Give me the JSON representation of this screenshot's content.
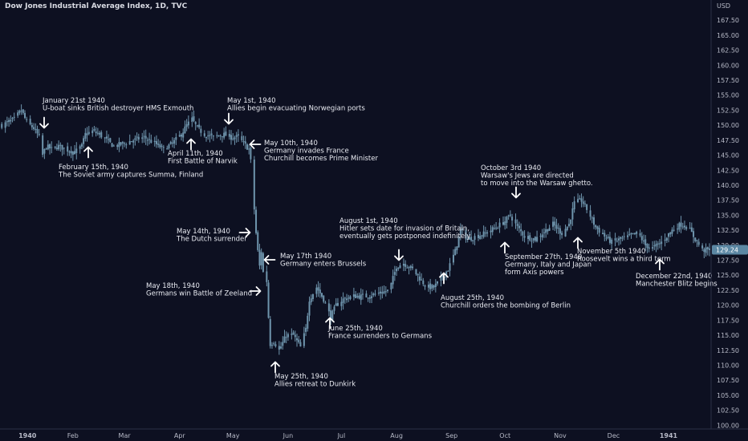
{
  "header": {
    "title": "Dow Jones Industrial Average Index, 1D, TVC",
    "currency": "USD"
  },
  "colors": {
    "background": "#0d1021",
    "candle": "#6f95ad",
    "annotation": "#ffffff",
    "price_tag": "#5b87a3"
  },
  "chart_data": {
    "type": "candlestick",
    "title": "Dow Jones Industrial Average Index, 1D, TVC",
    "ylabel": "USD",
    "ylim": [
      98.5,
      170
    ],
    "y_ticks": [
      100,
      102.5,
      105,
      107.5,
      110,
      112.5,
      115,
      117.5,
      120,
      122.5,
      125,
      127.5,
      130,
      132.5,
      135,
      137.5,
      140,
      142.5,
      145,
      147.5,
      150,
      152.5,
      155,
      157.5,
      160,
      162.5,
      165,
      167.5
    ],
    "x_ticks": [
      {
        "label": "1940",
        "date": "1940-01-01",
        "bold": true
      },
      {
        "label": "Feb",
        "date": "1940-02-01"
      },
      {
        "label": "Mar",
        "date": "1940-03-01"
      },
      {
        "label": "Apr",
        "date": "1940-04-01"
      },
      {
        "label": "May",
        "date": "1940-05-01"
      },
      {
        "label": "Jun",
        "date": "1940-06-01"
      },
      {
        "label": "Jul",
        "date": "1940-07-01"
      },
      {
        "label": "Aug",
        "date": "1940-08-01"
      },
      {
        "label": "Sep",
        "date": "1940-09-01"
      },
      {
        "label": "Oct",
        "date": "1940-10-01"
      },
      {
        "label": "Nov",
        "date": "1940-11-01"
      },
      {
        "label": "Dec",
        "date": "1940-12-01"
      },
      {
        "label": "1941",
        "date": "1941-01-01",
        "bold": true
      }
    ],
    "last_price": "129.24",
    "path": [
      [
        "1939-12-23",
        150.0
      ],
      [
        "1939-12-30",
        151.0
      ],
      [
        "1940-01-03",
        152.5
      ],
      [
        "1940-01-06",
        150.5
      ],
      [
        "1940-01-10",
        149.5
      ],
      [
        "1940-01-13",
        148.0
      ],
      [
        "1940-01-15",
        145.0
      ],
      [
        "1940-01-17",
        146.5
      ],
      [
        "1940-01-20",
        146.0
      ],
      [
        "1940-01-24",
        146.5
      ],
      [
        "1940-01-28",
        146.0
      ],
      [
        "1940-02-02",
        145.5
      ],
      [
        "1940-02-06",
        146.5
      ],
      [
        "1940-02-08",
        148.5
      ],
      [
        "1940-02-12",
        149.0
      ],
      [
        "1940-02-16",
        148.5
      ],
      [
        "1940-02-20",
        147.5
      ],
      [
        "1940-02-24",
        146.5
      ],
      [
        "1940-03-01",
        147.0
      ],
      [
        "1940-03-06",
        147.5
      ],
      [
        "1940-03-12",
        148.0
      ],
      [
        "1940-03-18",
        147.0
      ],
      [
        "1940-03-23",
        146.0
      ],
      [
        "1940-03-28",
        147.0
      ],
      [
        "1940-04-02",
        148.5
      ],
      [
        "1940-04-05",
        150.0
      ],
      [
        "1940-04-08",
        151.0
      ],
      [
        "1940-04-11",
        149.5
      ],
      [
        "1940-04-15",
        148.5
      ],
      [
        "1940-04-20",
        148.0
      ],
      [
        "1940-04-25",
        148.5
      ],
      [
        "1940-04-30",
        148.0
      ],
      [
        "1940-05-04",
        148.0
      ],
      [
        "1940-05-07",
        147.0
      ],
      [
        "1940-05-10",
        146.0
      ],
      [
        "1940-05-11",
        144.0
      ],
      [
        "1940-05-13",
        136.0
      ],
      [
        "1940-05-14",
        132.0
      ],
      [
        "1940-05-15",
        129.0
      ],
      [
        "1940-05-16",
        126.5
      ],
      [
        "1940-05-17",
        129.0
      ],
      [
        "1940-05-18",
        125.5
      ],
      [
        "1940-05-20",
        124.0
      ],
      [
        "1940-05-21",
        118.0
      ],
      [
        "1940-05-22",
        113.5
      ],
      [
        "1940-05-24",
        114.0
      ],
      [
        "1940-05-27",
        112.5
      ],
      [
        "1940-05-31",
        115.0
      ],
      [
        "1940-06-04",
        115.0
      ],
      [
        "1940-06-08",
        113.0
      ],
      [
        "1940-06-11",
        116.0
      ],
      [
        "1940-06-13",
        121.0
      ],
      [
        "1940-06-17",
        123.0
      ],
      [
        "1940-06-21",
        121.0
      ],
      [
        "1940-06-25",
        118.0
      ],
      [
        "1940-06-28",
        120.0
      ],
      [
        "1940-07-02",
        121.0
      ],
      [
        "1940-07-08",
        121.5
      ],
      [
        "1940-07-15",
        121.5
      ],
      [
        "1940-07-22",
        122.0
      ],
      [
        "1940-07-28",
        122.5
      ],
      [
        "1940-08-01",
        126.5
      ],
      [
        "1940-08-05",
        127.0
      ],
      [
        "1940-08-10",
        126.0
      ],
      [
        "1940-08-14",
        124.5
      ],
      [
        "1940-08-18",
        123.0
      ],
      [
        "1940-08-22",
        123.0
      ],
      [
        "1940-08-25",
        124.0
      ],
      [
        "1940-08-30",
        126.0
      ],
      [
        "1940-09-03",
        129.0
      ],
      [
        "1940-09-06",
        132.5
      ],
      [
        "1940-09-10",
        131.0
      ],
      [
        "1940-09-15",
        131.5
      ],
      [
        "1940-09-20",
        132.0
      ],
      [
        "1940-09-26",
        133.0
      ],
      [
        "1940-10-01",
        134.0
      ],
      [
        "1940-10-04",
        135.0
      ],
      [
        "1940-10-08",
        133.0
      ],
      [
        "1940-10-12",
        131.5
      ],
      [
        "1940-10-18",
        131.0
      ],
      [
        "1940-10-24",
        132.5
      ],
      [
        "1940-10-28",
        133.5
      ],
      [
        "1940-11-02",
        132.0
      ],
      [
        "1940-11-06",
        133.5
      ],
      [
        "1940-11-09",
        137.0
      ],
      [
        "1940-11-13",
        137.5
      ],
      [
        "1940-11-17",
        135.5
      ],
      [
        "1940-11-21",
        133.0
      ],
      [
        "1940-11-26",
        131.5
      ],
      [
        "1940-11-30",
        130.5
      ],
      [
        "1940-12-05",
        131.0
      ],
      [
        "1940-12-10",
        131.5
      ],
      [
        "1940-12-15",
        132.0
      ],
      [
        "1940-12-19",
        130.0
      ],
      [
        "1940-12-23",
        129.5
      ],
      [
        "1940-12-28",
        130.5
      ],
      [
        "1941-01-03",
        132.5
      ],
      [
        "1941-01-08",
        133.5
      ],
      [
        "1941-01-12",
        133.0
      ],
      [
        "1941-01-16",
        131.0
      ],
      [
        "1941-01-20",
        129.2
      ]
    ]
  },
  "annotations": [
    {
      "lines": [
        "January 21st 1940",
        "U-boat sinks British destroyer HMS Exmouth"
      ],
      "arrow": "down"
    },
    {
      "lines": [
        "February 15th, 1940",
        "The Soviet army captures Summa, Finland"
      ],
      "arrow": "up"
    },
    {
      "lines": [
        "April 11th, 1940",
        "First Battle of Narvik"
      ],
      "arrow": "up"
    },
    {
      "lines": [
        "May 1st, 1940",
        "Allies begin evacuating Norwegian ports"
      ],
      "arrow": "down"
    },
    {
      "lines": [
        "May 10th, 1940",
        "Germany invades France",
        "Churchill becomes Prime Minister"
      ],
      "arrow": "left"
    },
    {
      "lines": [
        "May 14th, 1940",
        "The Dutch surrender"
      ],
      "arrow": "right"
    },
    {
      "lines": [
        "May 17th 1940",
        "Germany enters Brussels"
      ],
      "arrow": "left"
    },
    {
      "lines": [
        "May 18th, 1940",
        "Germans win Battle of Zeeland"
      ],
      "arrow": "right"
    },
    {
      "lines": [
        "May 25th, 1940",
        "Allies retreat to Dunkirk"
      ],
      "arrow": "up"
    },
    {
      "lines": [
        "June 25th, 1940",
        "France surrenders to Germans"
      ],
      "arrow": "up"
    },
    {
      "lines": [
        "August 1st, 1940",
        "Hitler sets date for invasion of Britain,",
        "eventually gets postponed indefinitely"
      ],
      "arrow": "down"
    },
    {
      "lines": [
        "August 25th, 1940",
        "Churchill orders the bombing of Berlin"
      ],
      "arrow": "up"
    },
    {
      "lines": [
        "October 3rd 1940",
        "Warsaw's Jews are directed",
        "to move into the Warsaw ghetto."
      ],
      "arrow": "down"
    },
    {
      "lines": [
        "September 27th, 1940",
        "Germany, Italy and Japan",
        "form Axis powers"
      ],
      "arrow": "up"
    },
    {
      "lines": [
        "November 5th 1940",
        "Roosevelt wins a third term"
      ],
      "arrow": "up"
    },
    {
      "lines": [
        "December 22nd, 1940",
        "Manchester Blitz begins"
      ],
      "arrow": "up"
    }
  ]
}
